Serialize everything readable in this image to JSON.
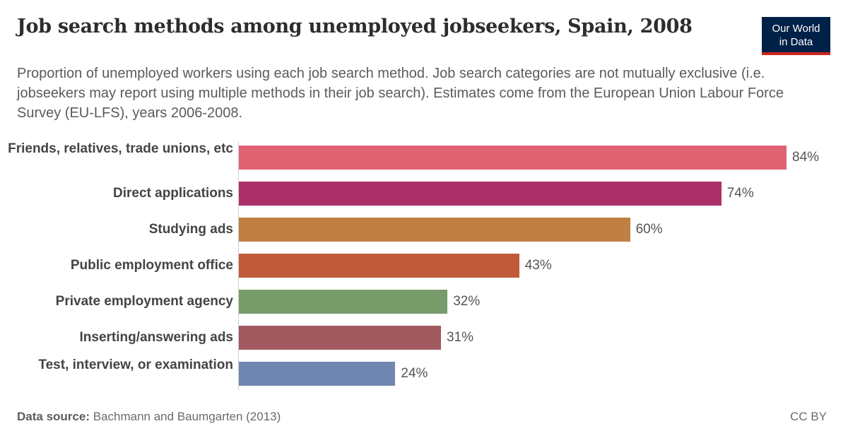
{
  "header": {
    "title": "Job search methods among unemployed jobseekers, Spain, 2008",
    "subtitle": "Proportion of unemployed workers using each job search method. Job search categories are not mutually exclusive (i.e. jobseekers may report using multiple methods in their job search). Estimates come from the European Union Labour Force Survey (EU-LFS), years 2006-2008.",
    "logo_line1": "Our World",
    "logo_line2": "in Data"
  },
  "footer": {
    "source_label": "Data source:",
    "source_text": "Bachmann and Baumgarten (2013)",
    "license": "CC BY"
  },
  "chart_data": {
    "type": "bar",
    "orientation": "horizontal",
    "title": "Job search methods among unemployed jobseekers, Spain, 2008",
    "xlabel": "",
    "ylabel": "",
    "unit": "%",
    "categories": [
      "Friends, relatives, trade unions, etc",
      "Direct applications",
      "Studying ads",
      "Public employment office",
      "Private employment agency",
      "Inserting/answering ads",
      "Test, interview, or examination"
    ],
    "values": [
      84,
      74,
      60,
      43,
      32,
      31,
      24
    ],
    "value_labels": [
      "84%",
      "74%",
      "60%",
      "43%",
      "32%",
      "31%",
      "24%"
    ],
    "colors": [
      "#e06373",
      "#ac3068",
      "#c07f43",
      "#c05a3a",
      "#789b6a",
      "#a05a60",
      "#6f87b0"
    ],
    "xlim": [
      0,
      84
    ],
    "grid": false,
    "legend": "none"
  }
}
